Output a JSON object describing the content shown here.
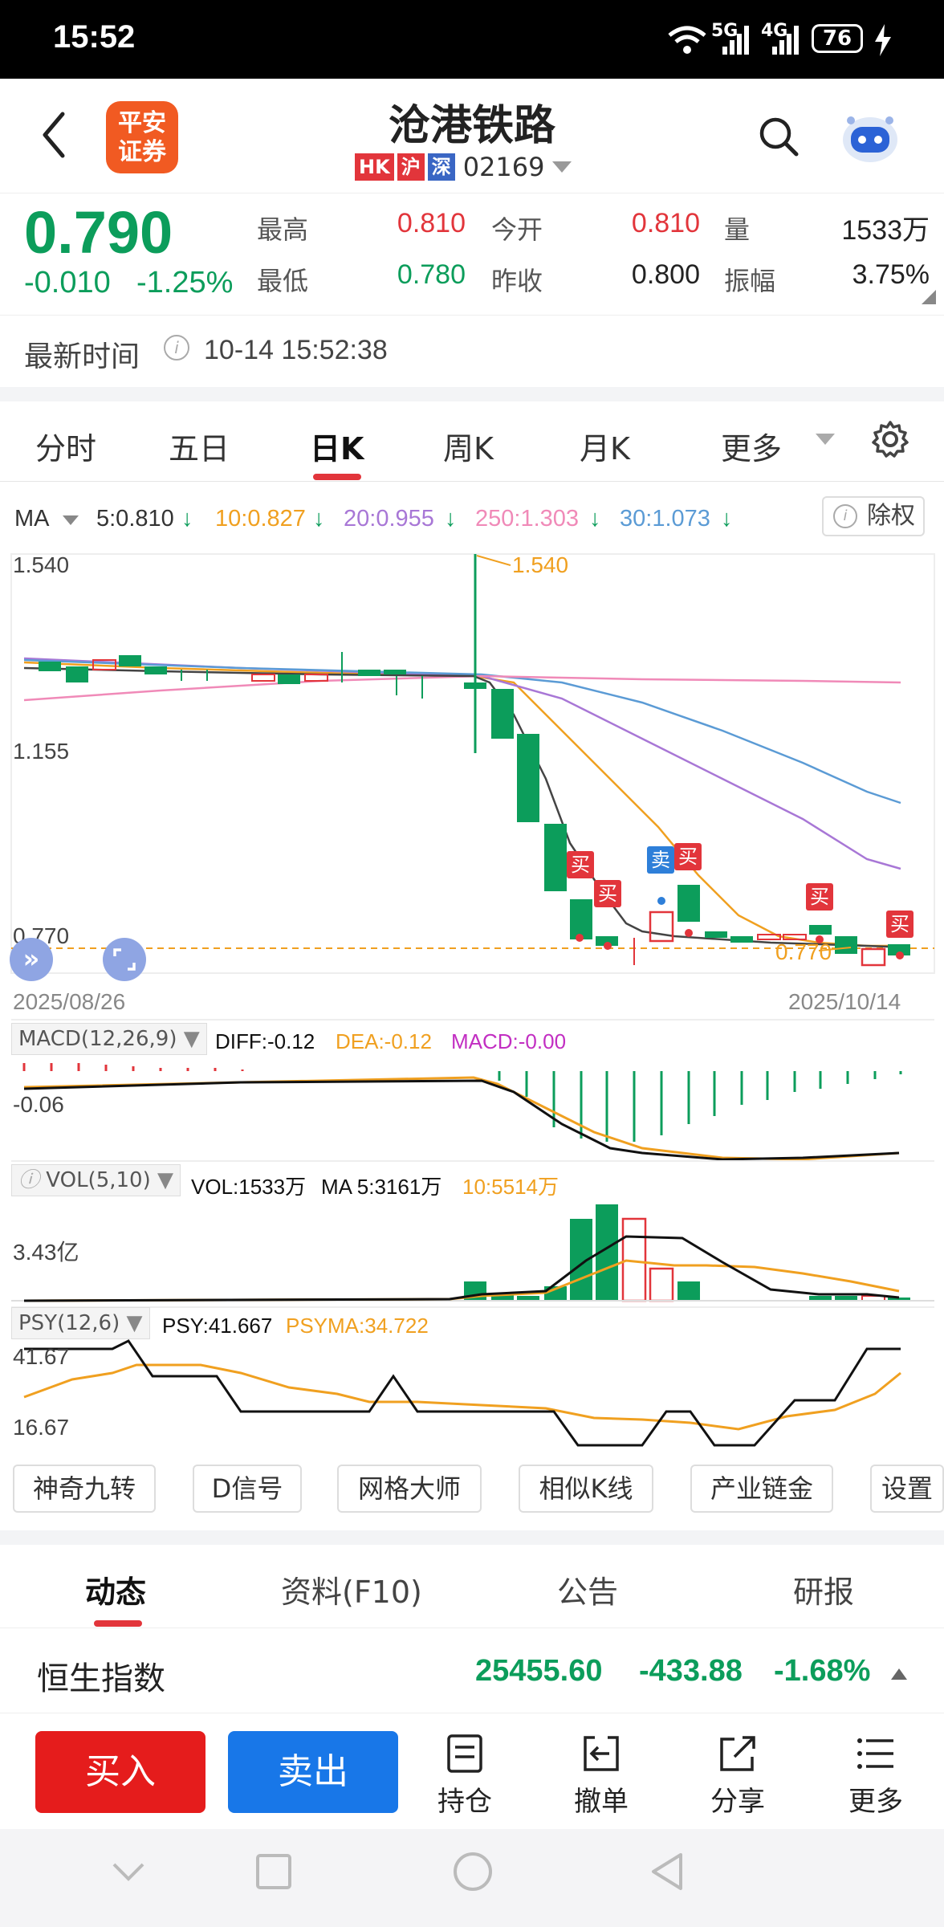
{
  "status_bar": {
    "time": "15:52",
    "net1": "5G",
    "net2": "4G",
    "battery": "76"
  },
  "header": {
    "logo_line1": "平安",
    "logo_line2": "证券",
    "title": "沧港铁路",
    "tags": [
      {
        "text": "HK",
        "color": "#e2353b"
      },
      {
        "text": "沪",
        "color": "#e2353b"
      },
      {
        "text": "深",
        "color": "#3a66c4"
      }
    ],
    "code": "02169"
  },
  "quote": {
    "price": "0.790",
    "change": "-0.010",
    "change_pct": "-1.25%",
    "fields": [
      {
        "label": "最高",
        "value": "0.810",
        "color": "red"
      },
      {
        "label": "今开",
        "value": "0.810",
        "color": "red"
      },
      {
        "label": "量",
        "value": "1533万",
        "color": "blk"
      },
      {
        "label": "最低",
        "value": "0.780",
        "color": "grn"
      },
      {
        "label": "昨收",
        "value": "0.800",
        "color": "blk"
      },
      {
        "label": "振幅",
        "value": "3.75%",
        "color": "blk"
      }
    ]
  },
  "latest_time": {
    "label": "最新时间",
    "value": "10-14 15:52:38"
  },
  "chart_tabs": {
    "items": [
      "分时",
      "五日",
      "日K",
      "周K",
      "月K",
      "更多"
    ],
    "active": "日K"
  },
  "ma_row": {
    "label": "MA",
    "items": [
      {
        "text": "5:0.810",
        "color": "#333333"
      },
      {
        "text": "10:0.827",
        "color": "#f0a020"
      },
      {
        "text": "20:0.955",
        "color": "#a877d6"
      },
      {
        "text": "250:1.303",
        "color": "#f08ab8"
      },
      {
        "text": "30:1.073",
        "color": "#5b9bd5"
      }
    ],
    "chuquan": "除权"
  },
  "kline": {
    "y_top": "1.540",
    "y_mid": "1.155",
    "y_low": "0.770",
    "high_mark": "1.540",
    "low_mark": "0.770",
    "date_start": "2025/08/26",
    "date_end": "2025/10/14",
    "buy_label": "买",
    "sell_label": "卖"
  },
  "chart_data": {
    "type": "candlestick",
    "x_range": [
      "2025/08/26",
      "2025/10/14"
    ],
    "ylim": [
      0.77,
      1.54
    ],
    "y_ticks": [
      1.54,
      1.155,
      0.77
    ],
    "last_close": 0.79,
    "high": 1.54,
    "low": 0.77,
    "ma": {
      "MA5": 0.81,
      "MA10": 0.827,
      "MA20": 0.955,
      "MA250": 1.303,
      "MA30": 1.073
    }
  },
  "macd": {
    "label": "MACD(12,26,9)",
    "diff": "DIFF:-0.12",
    "dea": "DEA:-0.12",
    "macd": "MACD:-0.00",
    "axis": "-0.06"
  },
  "vol": {
    "label": "VOL(5,10)",
    "vol": "VOL:1533万",
    "ma5": "MA 5:3161万",
    "ma10": "10:5514万",
    "axis": "3.43亿"
  },
  "psy": {
    "label": "PSY(12,6)",
    "psy": "PSY:41.667",
    "psyma": "PSYMA:34.722",
    "axis_top": "41.67",
    "axis_low": "16.67"
  },
  "tools": [
    "神奇九转",
    "D信号",
    "网格大师",
    "相似K线",
    "产业链金",
    "设置"
  ],
  "sub_tabs": {
    "items": [
      "动态",
      "资料(F10)",
      "公告",
      "研报"
    ],
    "active": "动态"
  },
  "index_row": {
    "name": "恒生指数",
    "value": "25455.60",
    "change": "-433.88",
    "pct": "-1.68%"
  },
  "trade_bar": {
    "buy": "买入",
    "sell": "卖出",
    "items": [
      "持仓",
      "撤单",
      "分享",
      "更多"
    ]
  }
}
